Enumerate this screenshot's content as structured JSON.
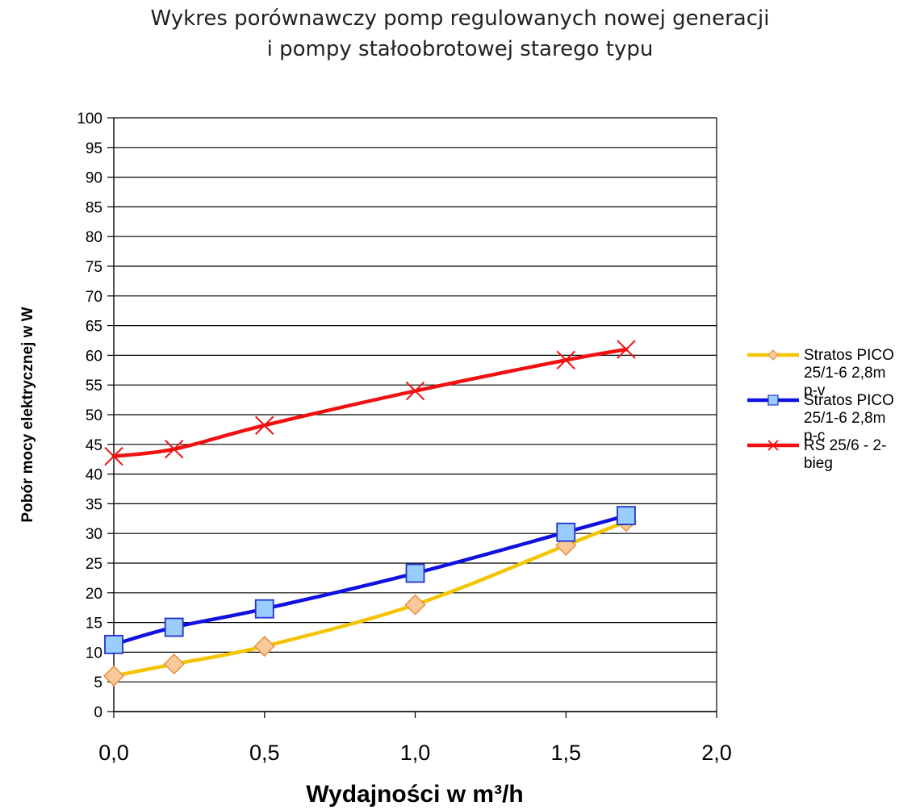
{
  "chart_data": {
    "type": "line",
    "title_lines": [
      "Wykres porównawczy pomp regulowanych nowej generacji",
      "i pompy stałoobrotowej starego typu"
    ],
    "xlabel": "Wydajności w m³/h",
    "ylabel": "Pobór mocy elektrycznej w W",
    "xlim": [
      0,
      2
    ],
    "ylim": [
      0,
      100
    ],
    "x_ticks": [
      0,
      0.5,
      1,
      1.5,
      2
    ],
    "x_tick_labels": [
      "0,0",
      "0,5",
      "1,0",
      "1,5",
      "2,0"
    ],
    "y_ticks": [
      0,
      5,
      10,
      15,
      20,
      25,
      30,
      35,
      40,
      45,
      50,
      55,
      60,
      65,
      70,
      75,
      80,
      85,
      90,
      95,
      100
    ],
    "grid": "horizontal",
    "legend_position": "right",
    "series": [
      {
        "name": "Stratos PICO 25/1-6 2,8m p-v",
        "legend_lines": [
          "Stratos PICO",
          "25/1-6 2,8m",
          "p-v"
        ],
        "color": "#F5C400",
        "marker": "diamond",
        "marker_fill": "#F9C89B",
        "marker_stroke": "#E8903C",
        "x": [
          0,
          0.2,
          0.5,
          1.0,
          1.5,
          1.7
        ],
        "values": [
          6,
          8,
          11,
          18,
          28,
          32
        ]
      },
      {
        "name": "Stratos PICO 25/1-6 2,8m p-c",
        "legend_lines": [
          "Stratos PICO",
          "25/1-6 2,8m",
          "p-c"
        ],
        "color": "#1010E0",
        "marker": "square",
        "marker_fill": "#99CCFF",
        "marker_stroke": "#2233CC",
        "x": [
          0,
          0.2,
          0.5,
          1.0,
          1.5,
          1.7
        ],
        "values": [
          11.3,
          14.2,
          17.3,
          23.3,
          30.2,
          33
        ]
      },
      {
        "name": "RS 25/6 - 2-bieg",
        "legend_lines": [
          "RS 25/6 - 2-",
          "bieg"
        ],
        "color": "#F01010",
        "marker": "x",
        "marker_fill": "none",
        "marker_stroke": "#F01010",
        "x": [
          0,
          0.2,
          0.5,
          1.0,
          1.5,
          1.7
        ],
        "values": [
          43,
          44.2,
          48.2,
          54,
          59.2,
          61
        ]
      }
    ]
  }
}
